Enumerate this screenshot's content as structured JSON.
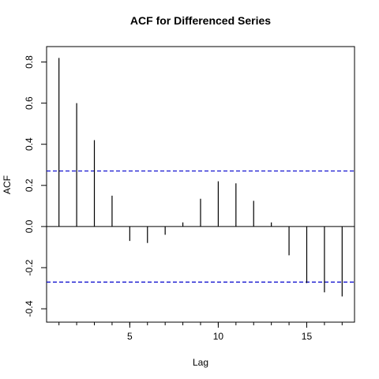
{
  "chart_data": {
    "type": "bar",
    "title": "ACF for Differenced Series",
    "xlabel": "Lag",
    "ylabel": "ACF",
    "x": [
      1,
      2,
      3,
      4,
      5,
      6,
      7,
      8,
      9,
      10,
      11,
      12,
      13,
      14,
      15,
      16,
      17
    ],
    "values": [
      0.82,
      0.6,
      0.42,
      0.15,
      -0.07,
      -0.08,
      -0.04,
      0.02,
      0.135,
      0.22,
      0.21,
      0.125,
      0.02,
      -0.14,
      -0.275,
      -0.32,
      -0.34
    ],
    "confidence_bound": 0.27,
    "xlim": [
      0.3,
      17.7
    ],
    "ylim": [
      -0.465,
      0.875
    ],
    "xticks": [
      5,
      10,
      15
    ],
    "yticks": [
      -0.4,
      -0.2,
      0.0,
      0.2,
      0.4,
      0.6,
      0.8
    ],
    "ytick_labels": [
      "-0.4",
      "-0.2",
      "0.0",
      "0.2",
      "0.4",
      "0.6",
      "0.8"
    ],
    "grid": false,
    "colors": {
      "bars": "#000000",
      "confidence": "#0000cc"
    }
  }
}
